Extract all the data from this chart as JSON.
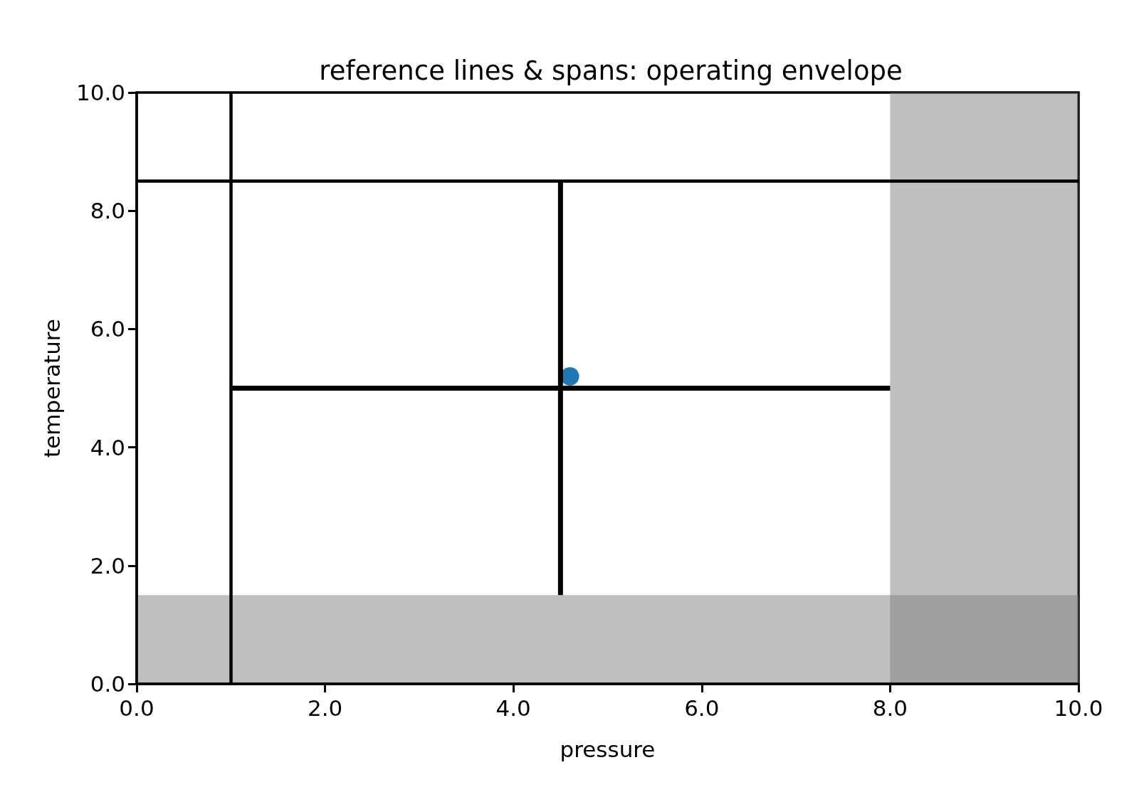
{
  "chart_data": {
    "type": "scatter",
    "title": "reference lines & spans: operating envelope",
    "xlabel": "pressure",
    "ylabel": "temperature",
    "series": [
      {
        "x": [
          4.6
        ],
        "values": [
          5.2
        ],
        "color": "#1f77b4",
        "marker": "circle"
      },
      {
        "type": "line",
        "x": [
          4.5,
          4.5
        ],
        "values": [
          1.5,
          8.5
        ],
        "color": "#000000",
        "marker": "none"
      },
      {
        "type": "line",
        "x": [
          1,
          8
        ],
        "values": [
          5,
          5
        ],
        "color": "#000000",
        "marker": "none"
      }
    ],
    "xlim": [
      0,
      10
    ],
    "ylim": [
      0,
      10
    ],
    "xticks": [
      {
        "value": 0,
        "label": "0.0"
      },
      {
        "value": 2,
        "label": "2.0"
      },
      {
        "value": 4,
        "label": "4.0"
      },
      {
        "value": 6,
        "label": "6.0"
      },
      {
        "value": 8,
        "label": "8.0"
      },
      {
        "value": 10,
        "label": "10.0"
      }
    ],
    "yticks": [
      {
        "value": 0,
        "label": "0.0"
      },
      {
        "value": 2,
        "label": "2.0"
      },
      {
        "value": 4,
        "label": "4.0"
      },
      {
        "value": 6,
        "label": "6.0"
      },
      {
        "value": 8,
        "label": "8.0"
      },
      {
        "value": 10,
        "label": "10.0"
      }
    ],
    "ref_lines": [
      {
        "axis": "x",
        "value": 1,
        "color": "#000000"
      },
      {
        "axis": "y",
        "value": 8.5,
        "color": "#000000"
      }
    ],
    "bands": [
      {
        "axis": "x",
        "from": 8,
        "to": 10,
        "color": "#808080"
      },
      {
        "axis": "y",
        "from": 0,
        "to": 1.5,
        "color": "#808080"
      }
    ],
    "grid": false
  }
}
